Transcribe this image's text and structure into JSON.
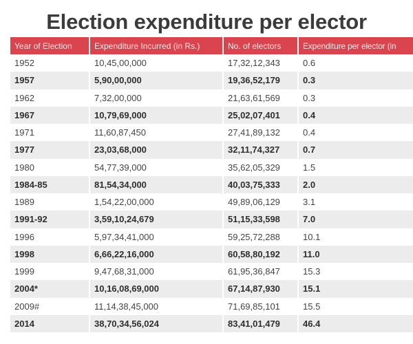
{
  "title": "Election expenditure per elector",
  "table": {
    "headers": [
      "Year of Election",
      "Expenditure Incurred (in Rs.)",
      "No. of electors",
      "Expenditure per elector (in"
    ],
    "rows": [
      [
        "1952",
        "10,45,00,000",
        "17,32,12,343",
        "0.6"
      ],
      [
        "1957",
        "5,90,00,000",
        "19,36,52,179",
        "0.3"
      ],
      [
        "1962",
        "7,32,00,000",
        "21,63,61,569",
        "0.3"
      ],
      [
        "1967",
        "10,79,69,000",
        "25,02,07,401",
        "0.4"
      ],
      [
        "1971",
        "11,60,87,450",
        "27,41,89,132",
        "0.4"
      ],
      [
        "1977",
        "23,03,68,000",
        "32,11,74,327",
        "0.7"
      ],
      [
        "1980",
        "54,77,39,000",
        "35,62,05,329",
        "1.5"
      ],
      [
        "1984-85",
        "81,54,34,000",
        "40,03,75,333",
        "2.0"
      ],
      [
        "1989",
        "1,54,22,00,000",
        "49,89,06,129",
        "3.1"
      ],
      [
        "1991-92",
        "3,59,10,24,679",
        "51,15,33,598",
        "7.0"
      ],
      [
        "1996",
        "5,97,34,41,000",
        "59,25,72,288",
        "10.1"
      ],
      [
        "1998",
        "6,66,22,16,000",
        "60,58,80,192",
        "11.0"
      ],
      [
        "1999",
        "9,47,68,31,000",
        "61,95,36,847",
        "15.3"
      ],
      [
        "2004*",
        "10,16,08,69,000",
        "67,14,87,930",
        "15.1"
      ],
      [
        "2009#",
        "11,14,38,45,000",
        "71,69,85,101",
        "15.5"
      ],
      [
        "2014",
        "38,70,34,56,024",
        "83,41,01,479",
        "46.4"
      ]
    ]
  },
  "colors": {
    "header_bg": "#d9444e",
    "alt_row_bg": "#ececec",
    "title": "#3b3b3b"
  }
}
